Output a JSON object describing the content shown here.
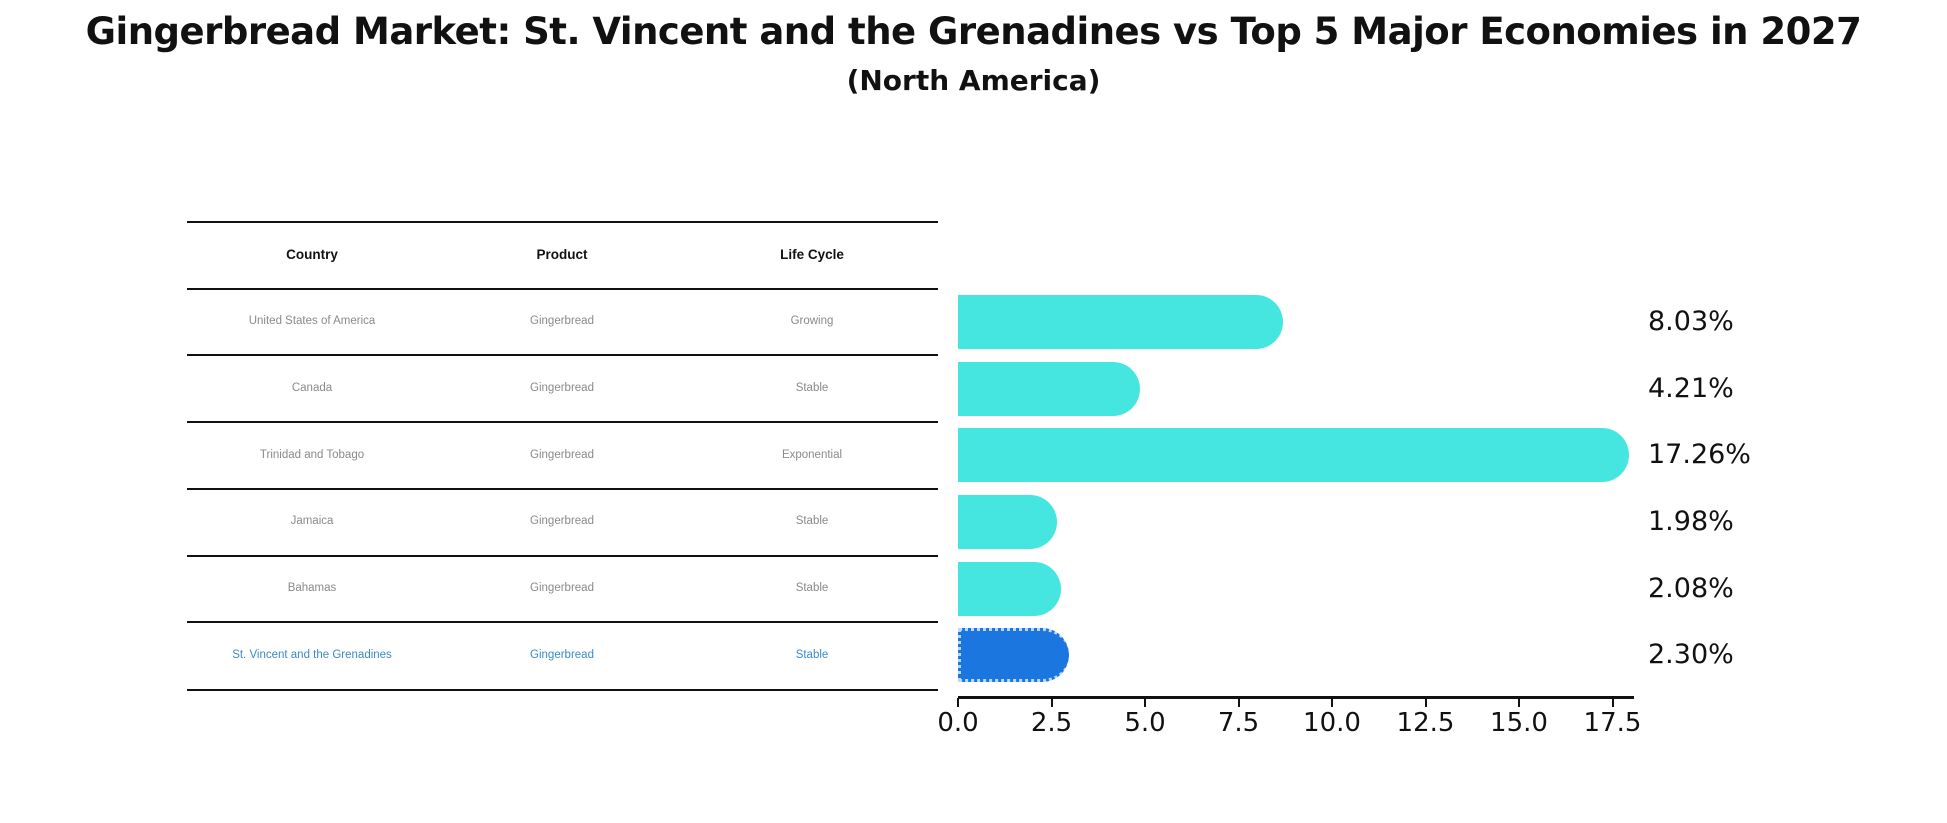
{
  "title": "Gingerbread Market: St. Vincent and the Grenadines vs Top 5 Major Economies in 2027",
  "subtitle": "(North America)",
  "table": {
    "headers": {
      "country": "Country",
      "product": "Product",
      "life_cycle": "Life Cycle"
    },
    "rows": [
      {
        "country": "United States of America",
        "product": "Gingerbread",
        "life_cycle": "Growing"
      },
      {
        "country": "Canada",
        "product": "Gingerbread",
        "life_cycle": "Stable"
      },
      {
        "country": "Trinidad and Tobago",
        "product": "Gingerbread",
        "life_cycle": "Exponential"
      },
      {
        "country": "Jamaica",
        "product": "Gingerbread",
        "life_cycle": "Stable"
      },
      {
        "country": "Bahamas",
        "product": "Gingerbread",
        "life_cycle": "Stable"
      },
      {
        "country": "St. Vincent and the Grenadines",
        "product": "Gingerbread",
        "life_cycle": "Stable"
      }
    ],
    "highlight_row_index": 5
  },
  "chart_data": {
    "type": "bar",
    "orientation": "horizontal",
    "title": "Gingerbread Market: St. Vincent and the Grenadines vs Top 5 Major Economies in 2027 (North America)",
    "categories": [
      "United States of America",
      "Canada",
      "Trinidad and Tobago",
      "Jamaica",
      "Bahamas",
      "St. Vincent and the Grenadines"
    ],
    "values": [
      8.03,
      4.21,
      17.26,
      1.98,
      2.08,
      2.3
    ],
    "value_labels": [
      "8.03%",
      "4.21%",
      "17.26%",
      "1.98%",
      "2.08%",
      "2.30%"
    ],
    "x_ticks": [
      0.0,
      2.5,
      5.0,
      7.5,
      10.0,
      12.5,
      15.0,
      17.5
    ],
    "xlim": [
      0,
      18.1
    ],
    "grid": false,
    "legend": false,
    "bar_color": "#45e6e0",
    "highlight_bar_color": "#1b76e0",
    "highlight_index": 5,
    "highlight_text_color": "#3a8bc8"
  }
}
